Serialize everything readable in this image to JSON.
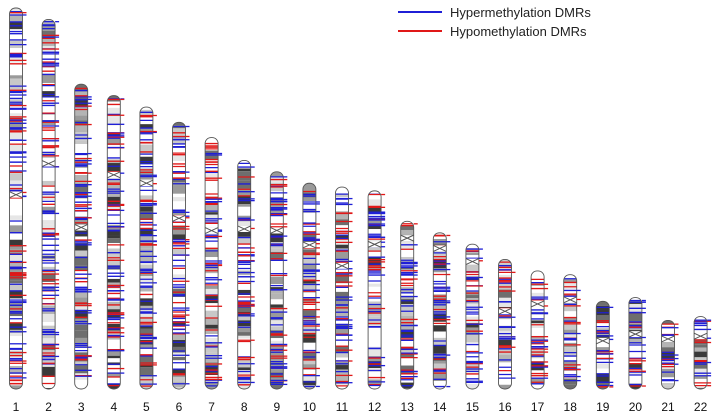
{
  "legend": {
    "hyper_label": "Hypermethylation DMRs",
    "hypo_label": "Hypomethylation DMRs"
  },
  "colors": {
    "hyper": "#1f1fd6",
    "hypo": "#e01818",
    "outline": "#555555"
  },
  "chromosomes": [
    {
      "label": "1",
      "relative_length": 1.0,
      "centromere": 0.49
    },
    {
      "label": "2",
      "relative_length": 0.97,
      "centromere": 0.39
    },
    {
      "label": "3",
      "relative_length": 0.8,
      "centromere": 0.47
    },
    {
      "label": "4",
      "relative_length": 0.77,
      "centromere": 0.27
    },
    {
      "label": "5",
      "relative_length": 0.74,
      "centromere": 0.27
    },
    {
      "label": "6",
      "relative_length": 0.7,
      "centromere": 0.36
    },
    {
      "label": "7",
      "relative_length": 0.66,
      "centromere": 0.37
    },
    {
      "label": "8",
      "relative_length": 0.6,
      "centromere": 0.3
    },
    {
      "label": "9",
      "relative_length": 0.57,
      "centromere": 0.27
    },
    {
      "label": "10",
      "relative_length": 0.54,
      "centromere": 0.3
    },
    {
      "label": "11",
      "relative_length": 0.53,
      "centromere": 0.39
    },
    {
      "label": "12",
      "relative_length": 0.52,
      "centromere": 0.27
    },
    {
      "label": "13",
      "relative_length": 0.44,
      "centromere": 0.1
    },
    {
      "label": "14",
      "relative_length": 0.41,
      "centromere": 0.1
    },
    {
      "label": "15",
      "relative_length": 0.38,
      "centromere": 0.12
    },
    {
      "label": "16",
      "relative_length": 0.34,
      "centromere": 0.4
    },
    {
      "label": "17",
      "relative_length": 0.31,
      "centromere": 0.28
    },
    {
      "label": "18",
      "relative_length": 0.3,
      "centromere": 0.22
    },
    {
      "label": "19",
      "relative_length": 0.23,
      "centromere": 0.45
    },
    {
      "label": "20",
      "relative_length": 0.24,
      "centromere": 0.4
    },
    {
      "label": "21",
      "relative_length": 0.18,
      "centromere": 0.27
    },
    {
      "label": "22",
      "relative_length": 0.19,
      "centromere": 0.27
    }
  ]
}
